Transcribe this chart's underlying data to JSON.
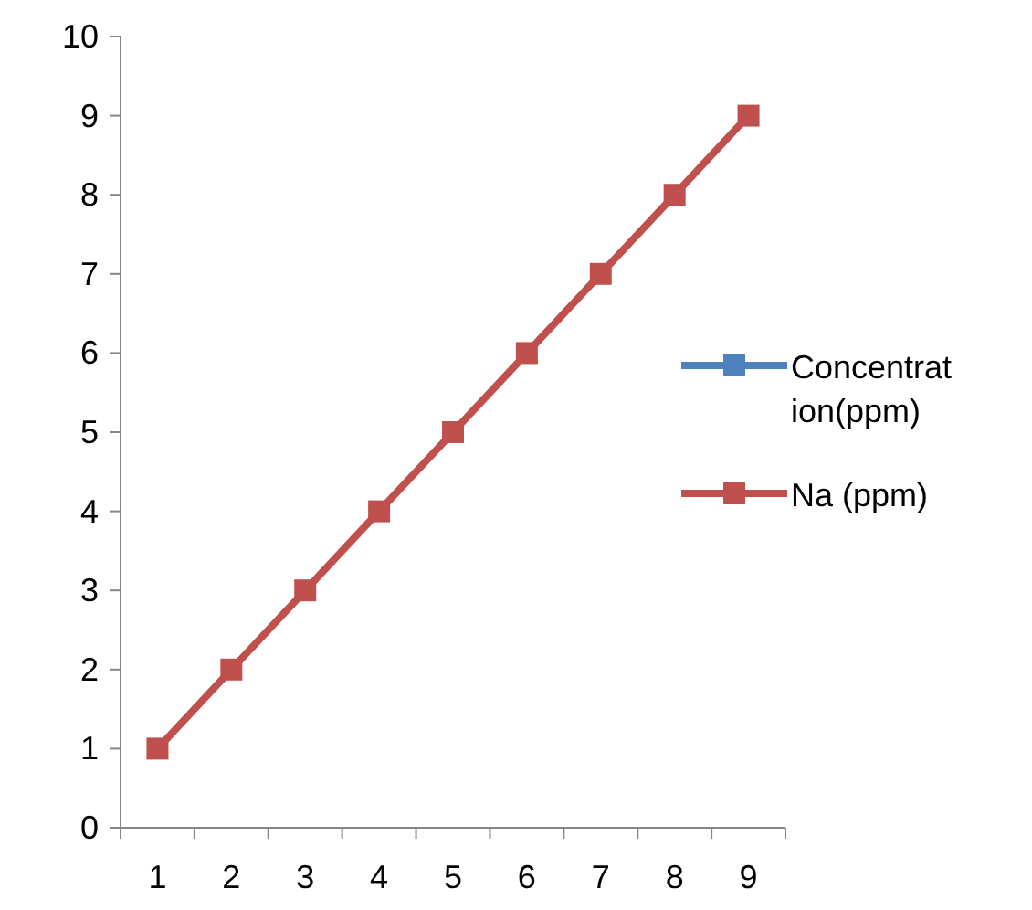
{
  "chart_data": {
    "type": "line",
    "categories": [
      "1",
      "2",
      "3",
      "4",
      "5",
      "6",
      "7",
      "8",
      "9"
    ],
    "series": [
      {
        "name": "Concentration(ppm)",
        "color": "#4f81bd",
        "values": [
          null,
          null,
          null,
          null,
          null,
          null,
          null,
          null,
          null
        ]
      },
      {
        "name": "Na (ppm)",
        "color": "#c0504d",
        "values": [
          1,
          2,
          3,
          4,
          5,
          6,
          7,
          8,
          9
        ]
      }
    ],
    "ylim": [
      0,
      10
    ],
    "yticks": [
      0,
      1,
      2,
      3,
      4,
      5,
      6,
      7,
      8,
      9,
      10
    ],
    "grid": false,
    "legend": "right",
    "marker": "square",
    "line_style": "solid"
  }
}
